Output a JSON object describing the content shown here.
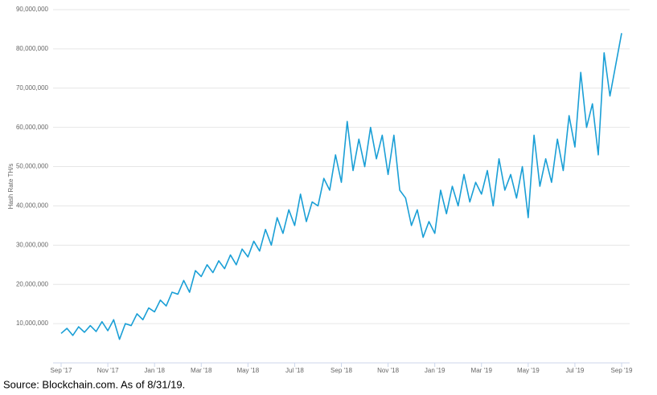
{
  "chart_data": {
    "type": "line",
    "y_label": "Hash Rate TH/s",
    "source": "Source: Blockchain.com. As of 8/31/19.",
    "x": [
      0,
      0.25,
      0.5,
      0.75,
      1,
      1.25,
      1.5,
      1.75,
      2,
      2.25,
      2.5,
      2.75,
      3,
      3.25,
      3.5,
      3.75,
      4,
      4.25,
      4.5,
      4.75,
      5,
      5.25,
      5.5,
      5.75,
      6,
      6.25,
      6.5,
      6.75,
      7,
      7.25,
      7.5,
      7.75,
      8,
      8.25,
      8.5,
      8.75,
      9,
      9.25,
      9.5,
      9.75,
      10,
      10.25,
      10.5,
      10.75,
      11,
      11.25,
      11.5,
      11.75,
      12,
      12.25,
      12.5,
      12.75,
      13,
      13.25,
      13.5,
      13.75,
      14,
      14.25,
      14.5,
      14.75,
      15,
      15.25,
      15.5,
      15.75,
      16,
      16.25,
      16.5,
      16.75,
      17,
      17.25,
      17.5,
      17.75,
      18,
      18.25,
      18.5,
      18.75,
      19,
      19.25,
      19.5,
      19.75,
      20,
      20.25,
      20.5,
      20.75,
      21,
      21.25,
      21.5,
      21.75,
      22,
      22.25,
      22.5,
      22.75,
      23,
      23.25,
      23.5,
      23.75,
      24
    ],
    "series": [
      {
        "color": "#1a9fd6",
        "values": [
          7500000,
          8800000,
          7000000,
          9200000,
          7800000,
          9500000,
          8000000,
          10500000,
          8200000,
          11000000,
          6000000,
          10000000,
          9500000,
          12500000,
          11000000,
          14000000,
          13000000,
          16000000,
          14500000,
          18000000,
          17500000,
          21000000,
          18000000,
          23500000,
          22000000,
          25000000,
          23000000,
          26000000,
          24000000,
          27500000,
          25000000,
          29000000,
          27000000,
          31000000,
          28500000,
          34000000,
          30000000,
          37000000,
          33000000,
          39000000,
          35000000,
          43000000,
          36000000,
          41000000,
          40000000,
          47000000,
          44000000,
          53000000,
          46000000,
          61500000,
          49000000,
          57000000,
          50000000,
          60000000,
          52000000,
          58000000,
          48000000,
          58000000,
          44000000,
          42000000,
          35000000,
          39000000,
          32000000,
          36000000,
          33000000,
          44000000,
          38000000,
          45000000,
          40000000,
          48000000,
          41000000,
          46000000,
          43000000,
          49000000,
          40000000,
          52000000,
          44000000,
          48000000,
          42000000,
          50000000,
          37000000,
          58000000,
          45000000,
          52000000,
          46000000,
          57000000,
          49000000,
          63000000,
          55000000,
          74000000,
          60000000,
          66000000,
          53000000,
          79000000,
          68000000,
          76000000,
          84000000
        ]
      }
    ],
    "xlim": [
      0,
      24
    ],
    "xticks": [
      {
        "value": 0,
        "label": "Sep '17"
      },
      {
        "value": 2,
        "label": "Nov '17"
      },
      {
        "value": 4,
        "label": "Jan '18"
      },
      {
        "value": 6,
        "label": "Mar '18"
      },
      {
        "value": 8,
        "label": "May '18"
      },
      {
        "value": 10,
        "label": "Jul '18"
      },
      {
        "value": 12,
        "label": "Sep '18"
      },
      {
        "value": 14,
        "label": "Nov '18"
      },
      {
        "value": 16,
        "label": "Jan '19"
      },
      {
        "value": 18,
        "label": "Mar '19"
      },
      {
        "value": 20,
        "label": "May '19"
      },
      {
        "value": 22,
        "label": "Jul '19"
      },
      {
        "value": 24,
        "label": "Sep '19"
      }
    ],
    "ylim": [
      0,
      90000000
    ],
    "yticks": [
      {
        "value": 10000000,
        "label": "10,000,000"
      },
      {
        "value": 20000000,
        "label": "20,000,000"
      },
      {
        "value": 30000000,
        "label": "30,000,000"
      },
      {
        "value": 40000000,
        "label": "40,000,000"
      },
      {
        "value": 50000000,
        "label": "50,000,000"
      },
      {
        "value": 60000000,
        "label": "60,000,000"
      },
      {
        "value": 70000000,
        "label": "70,000,000"
      },
      {
        "value": 80000000,
        "label": "80,000,000"
      },
      {
        "value": 90000000,
        "label": "90,000,000"
      }
    ],
    "grid": true
  }
}
